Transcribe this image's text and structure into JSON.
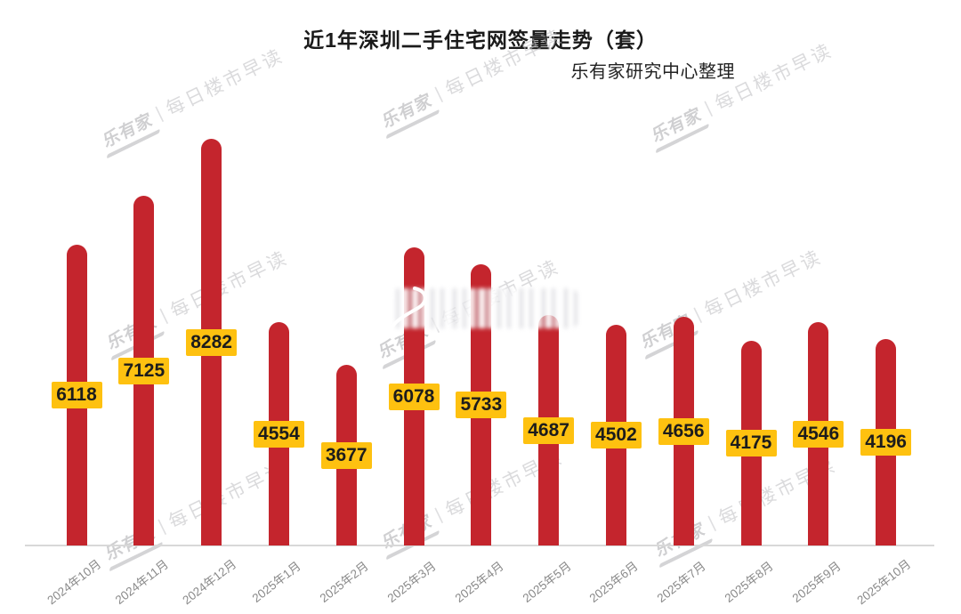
{
  "header": {
    "title": "近1年深圳二手住宅网签量走势（套）",
    "subtitle": "乐有家研究中心整理"
  },
  "watermark": {
    "logo": "乐有家",
    "separator": "|",
    "text": "每日楼市早读"
  },
  "colors": {
    "bar": "#c4252d",
    "data_label_bg": "#fec110",
    "data_label_text": "#1c1c1c",
    "axis_line": "#d8d8d8",
    "tick_label": "#8a8a8a",
    "title_text": "#1a1a1a",
    "watermark_text": "#bdbdc0"
  },
  "chart_data": {
    "type": "bar",
    "categories": [
      "2024年10月",
      "2024年11月",
      "2024年12月",
      "2025年1月",
      "2025年2月",
      "2025年3月",
      "2025年4月",
      "2025年5月",
      "2025年6月",
      "2025年7月",
      "2025年8月",
      "2025年9月",
      "2025年10月"
    ],
    "values": [
      6118,
      7125,
      8282,
      4554,
      3677,
      6078,
      5733,
      4687,
      4502,
      4656,
      4175,
      4546,
      4196
    ],
    "title": "近1年深圳二手住宅网签量走势（套）",
    "xlabel": "",
    "ylabel": "",
    "ylim": [
      0,
      8600
    ],
    "grid": false,
    "legend": false,
    "bar_shape": "rounded-top",
    "data_labels": "centered-on-bar"
  }
}
